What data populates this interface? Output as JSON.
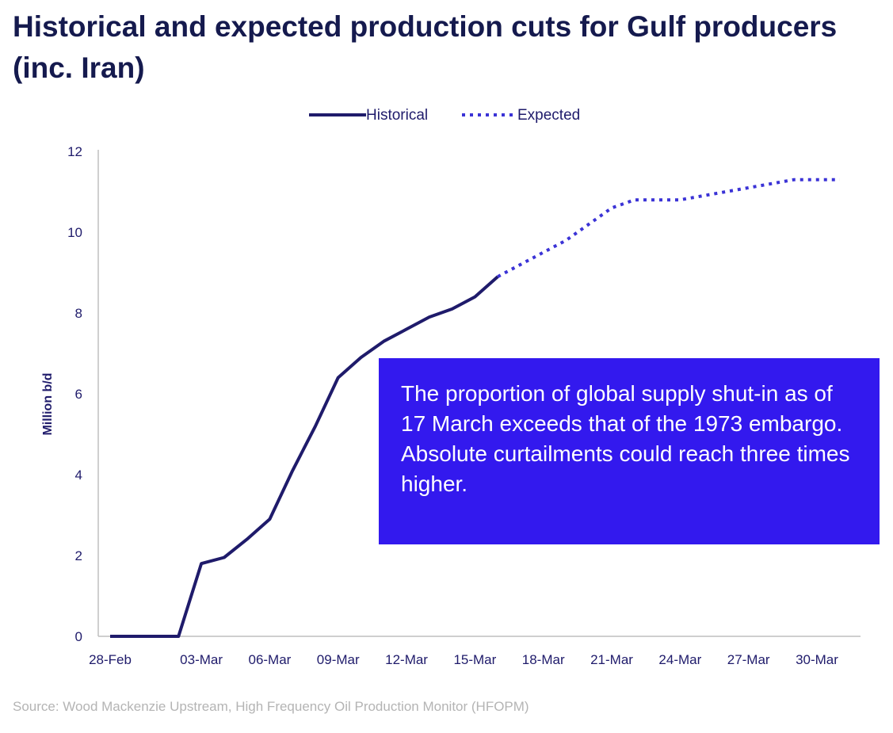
{
  "title": "Historical and expected production cuts for Gulf producers (inc. Iran)",
  "source": "Source: Wood Mackenzie Upstream, High Frequency Oil Production Monitor (HFOPM)",
  "callout": {
    "text": "The proportion of global supply shut-in as of 17 March exceeds that of the 1973 embargo. Absolute curtailments could reach three times higher."
  },
  "colors": {
    "series": "#1f1b6b",
    "expected": "#3b33d6",
    "callout_bg": "#3319ee",
    "title": "#151a4e",
    "axis": "#bfbfbf"
  },
  "chart_data": {
    "type": "line",
    "title": "Historical and expected production cuts for Gulf producers (inc. Iran)",
    "ylabel": "Million b/d",
    "xlabel": "",
    "ylim": [
      0,
      12
    ],
    "yticks": [
      "0",
      "2",
      "4",
      "6",
      "8",
      "10",
      "12"
    ],
    "xticks": [
      "28-Feb",
      "03-Mar",
      "06-Mar",
      "09-Mar",
      "12-Mar",
      "15-Mar",
      "18-Mar",
      "21-Mar",
      "24-Mar",
      "27-Mar",
      "30-Mar"
    ],
    "grid": false,
    "legend_position": "top-center",
    "series": [
      {
        "name": "Historical",
        "style": "solid",
        "x": [
          "28-Feb",
          "01-Mar",
          "02-Mar",
          "03-Mar",
          "04-Mar",
          "05-Mar",
          "06-Mar",
          "07-Mar",
          "08-Mar",
          "09-Mar",
          "10-Mar",
          "11-Mar",
          "12-Mar",
          "13-Mar",
          "14-Mar",
          "15-Mar",
          "16-Mar"
        ],
        "values": [
          0,
          0,
          0,
          1.8,
          1.95,
          2.4,
          2.9,
          4.1,
          5.2,
          6.4,
          6.9,
          7.3,
          7.6,
          7.9,
          8.1,
          8.4,
          8.9
        ]
      },
      {
        "name": "Expected",
        "style": "dotted",
        "x": [
          "16-Mar",
          "17-Mar",
          "18-Mar",
          "19-Mar",
          "20-Mar",
          "21-Mar",
          "22-Mar",
          "23-Mar",
          "24-Mar",
          "25-Mar",
          "26-Mar",
          "27-Mar",
          "28-Mar",
          "29-Mar",
          "30-Mar",
          "31-Mar"
        ],
        "values": [
          8.9,
          9.2,
          9.5,
          9.8,
          10.2,
          10.6,
          10.8,
          10.8,
          10.8,
          10.9,
          11.0,
          11.1,
          11.2,
          11.3,
          11.3,
          11.3
        ]
      }
    ]
  }
}
